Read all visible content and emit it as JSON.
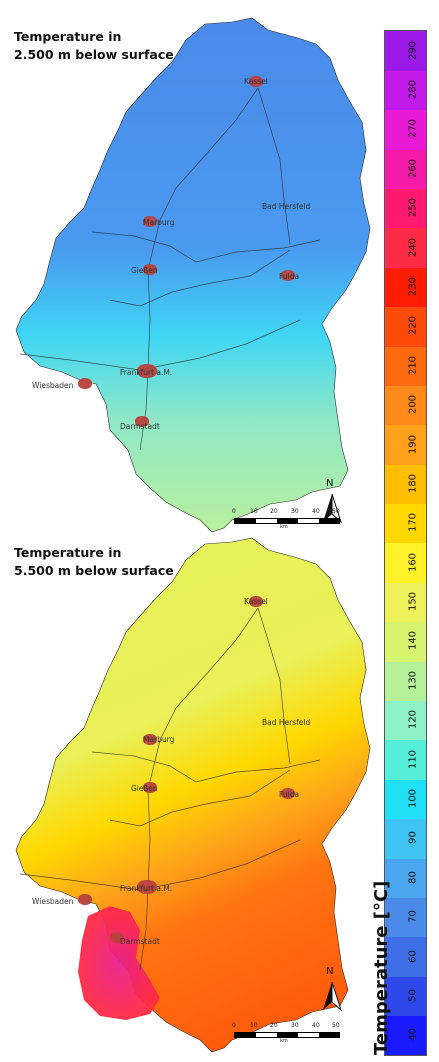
{
  "maps": [
    {
      "title_line1": "Temperature in",
      "title_line2": "2.500 m below surface",
      "cities": [
        {
          "name": "Kassel"
        },
        {
          "name": "Bad Hersfeld"
        },
        {
          "name": "Marburg"
        },
        {
          "name": "Gießen"
        },
        {
          "name": "Fulda"
        },
        {
          "name": "Frankfurt a.M."
        },
        {
          "name": "Wiesbaden"
        },
        {
          "name": "Darmstadt"
        }
      ],
      "scale_ticks": [
        "0",
        "10",
        "20",
        "30",
        "40",
        "50"
      ],
      "scale_unit": "km",
      "north_label": "N"
    },
    {
      "title_line1": "Temperature in",
      "title_line2": "5.500 m below surface",
      "cities": [
        {
          "name": "Kassel"
        },
        {
          "name": "Bad Hersfeld"
        },
        {
          "name": "Marburg"
        },
        {
          "name": "Gießen"
        },
        {
          "name": "Fulda"
        },
        {
          "name": "Frankfurt a.M."
        },
        {
          "name": "Wiesbaden"
        },
        {
          "name": "Darmstadt"
        }
      ],
      "scale_ticks": [
        "0",
        "10",
        "20",
        "30",
        "40",
        "50"
      ],
      "scale_unit": "km",
      "north_label": "N"
    }
  ],
  "legend": {
    "title": "Temperature [°C]",
    "ticks": [
      "40",
      "50",
      "60",
      "70",
      "80",
      "90",
      "100",
      "110",
      "120",
      "130",
      "140",
      "150",
      "160",
      "170",
      "180",
      "190",
      "200",
      "210",
      "220",
      "230",
      "240",
      "250",
      "260",
      "270",
      "280",
      "290"
    ],
    "colors": [
      "#1a1aff",
      "#2f48ea",
      "#3f6fe6",
      "#4a8ae8",
      "#4aa6ee",
      "#3fc4f2",
      "#1fe0f5",
      "#55eed8",
      "#8ef2c6",
      "#b6f19a",
      "#d6f46e",
      "#eef25a",
      "#fff22a",
      "#ffd800",
      "#ffbf00",
      "#ffa11a",
      "#ff8a1a",
      "#ff6a10",
      "#ff4a0a",
      "#ff1c05",
      "#ff2a45",
      "#ff1a70",
      "#f51aa8",
      "#e81ad6",
      "#c21ae8",
      "#9b1ae8"
    ]
  }
}
